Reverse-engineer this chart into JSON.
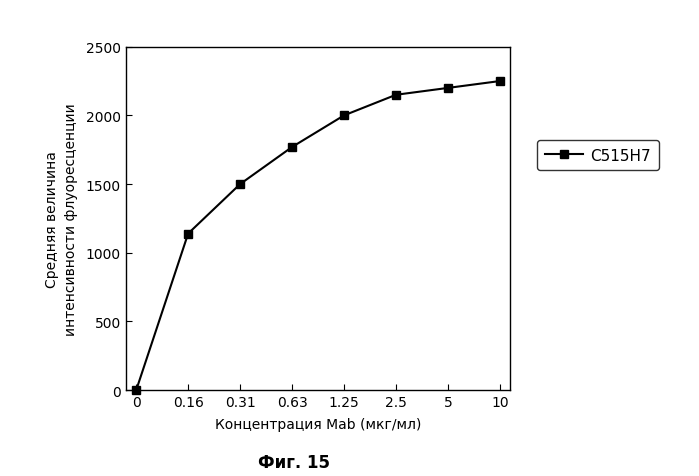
{
  "x_values": [
    0,
    1,
    2,
    3,
    4,
    5,
    6,
    7
  ],
  "y_values": [
    0,
    1140,
    1500,
    1770,
    2000,
    2150,
    2200,
    2250
  ],
  "x_tick_labels": [
    "0",
    "0.16",
    "0.31",
    "0.63",
    "1.25",
    "2.5",
    "5",
    "10"
  ],
  "ylabel": "Средняя величина\nинтенсивности флуоресценции",
  "xlabel": "Концентрация Mab (мкг/мл)",
  "caption": "Фиг. 15",
  "legend_label": "С515Н7",
  "ylim": [
    0,
    2500
  ],
  "yticks": [
    0,
    500,
    1000,
    1500,
    2000,
    2500
  ],
  "line_color": "#000000",
  "marker": "s",
  "marker_size": 6,
  "line_width": 1.5,
  "background_color": "#ffffff",
  "plot_bg_color": "#ffffff",
  "tick_fontsize": 10,
  "label_fontsize": 10,
  "legend_fontsize": 11,
  "caption_fontsize": 12
}
